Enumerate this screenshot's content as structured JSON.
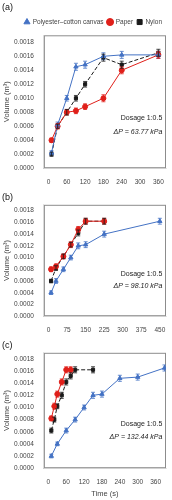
{
  "chart_data": [
    {
      "type": "line",
      "title": "(a)",
      "annotations": [
        "Dosage 1:0.5",
        "ΔP = 63.77 kPa"
      ],
      "ylabel": "Volume (m³)",
      "xlim": [
        -15,
        385
      ],
      "xticks": [
        0,
        60,
        120,
        180,
        240,
        300,
        360
      ],
      "ylim": [
        0,
        0.0019
      ],
      "yticks": [
        {
          "value": 0,
          "label": "0.0000"
        },
        {
          "value": 0.0002,
          "label": "0.0002"
        },
        {
          "value": 0.0004,
          "label": "0.0004"
        },
        {
          "value": 0.0006,
          "label": "0.0006"
        },
        {
          "value": 0.0008,
          "label": "0.0008"
        },
        {
          "value": 0.001,
          "label": "0.0010"
        },
        {
          "value": 0.0012,
          "label": "0.0012"
        },
        {
          "value": 0.0014,
          "label": "0.0014"
        },
        {
          "value": 0.0016,
          "label": "0.0016"
        },
        {
          "value": 0.0018,
          "label": "0.0018"
        }
      ],
      "grid": false,
      "legend": "upper right",
      "series": [
        {
          "name": "Polyester–cotton canvas",
          "color": "#4472C4",
          "marker": "triangle",
          "line_style": "solid",
          "x": [
            10,
            30,
            60,
            90,
            120,
            180,
            240,
            360
          ],
          "values": [
            0.00022,
            0.00062,
            0.001,
            0.00145,
            0.00148,
            0.0016,
            0.00162,
            0.00162
          ],
          "yerr": [
            3e-05,
            4e-05,
            4e-05,
            5e-05,
            5e-05,
            5e-05,
            5e-05,
            5e-05
          ]
        },
        {
          "name": "Paper",
          "color": "#E0201A",
          "marker": "circle",
          "line_style": "solid",
          "x": [
            10,
            30,
            60,
            90,
            120,
            180,
            240,
            360
          ],
          "values": [
            0.0004,
            0.0006,
            0.0008,
            0.00082,
            0.00088,
            0.001,
            0.0014,
            0.00162
          ],
          "yerr": [
            3e-05,
            4e-05,
            4e-05,
            4e-05,
            4e-05,
            5e-05,
            5e-05,
            5e-05
          ]
        },
        {
          "name": "Nylon",
          "color": "#1A1A1A",
          "marker": "square",
          "line_style": "dashed",
          "x": [
            10,
            30,
            60,
            90,
            120,
            180,
            240,
            360
          ],
          "values": [
            0.0002,
            0.0006,
            0.0008,
            0.001,
            0.0012,
            0.00158,
            0.00148,
            0.00165
          ],
          "yerr": [
            3e-05,
            3e-05,
            4e-05,
            4e-05,
            4e-05,
            5e-05,
            5e-05,
            5e-05
          ]
        }
      ]
    },
    {
      "type": "line",
      "title": "(b)",
      "annotations": [
        "Dosage 1:0.5",
        "ΔP = 98.10 kPa"
      ],
      "ylabel": "Volume (m³)",
      "xlim": [
        -19,
        475
      ],
      "xticks": [
        0,
        75,
        150,
        225,
        300,
        375,
        450
      ],
      "ylim": [
        0,
        0.0019
      ],
      "yticks": [
        {
          "value": 0,
          "label": "0.0000"
        },
        {
          "value": 0.0002,
          "label": "0.0002"
        },
        {
          "value": 0.0004,
          "label": "0.0004"
        },
        {
          "value": 0.0006,
          "label": "0.0006"
        },
        {
          "value": 0.0008,
          "label": "0.0008"
        },
        {
          "value": 0.001,
          "label": "0.0010"
        },
        {
          "value": 0.0012,
          "label": "0.0012"
        },
        {
          "value": 0.0014,
          "label": "0.0014"
        },
        {
          "value": 0.0016,
          "label": "0.0016"
        },
        {
          "value": 0.0018,
          "label": "0.0018"
        }
      ],
      "grid": false,
      "series": [
        {
          "name": "Polyester–cotton canvas",
          "color": "#4472C4",
          "marker": "triangle",
          "line_style": "solid",
          "x": [
            10,
            30,
            60,
            90,
            120,
            150,
            225,
            450
          ],
          "values": [
            0.0004,
            0.0006,
            0.0008,
            0.001,
            0.0012,
            0.00122,
            0.0014,
            0.00162
          ],
          "yerr": [
            3e-05,
            4e-05,
            4e-05,
            4e-05,
            5e-05,
            5e-05,
            5e-05,
            5e-05
          ]
        },
        {
          "name": "Paper",
          "color": "#E0201A",
          "marker": "circle",
          "line_style": "solid",
          "x": [
            10,
            30,
            60,
            90,
            120,
            150,
            225
          ],
          "values": [
            0.0008,
            0.00085,
            0.00102,
            0.00122,
            0.00148,
            0.00162,
            0.00162
          ],
          "yerr": [
            4e-05,
            4e-05,
            4e-05,
            5e-05,
            5e-05,
            5e-05,
            5e-05
          ]
        },
        {
          "name": "Nylon",
          "color": "#1A1A1A",
          "marker": "square",
          "line_style": "dashed",
          "x": [
            10,
            30,
            60,
            90,
            120,
            150,
            225
          ],
          "values": [
            0.0006,
            0.00082,
            0.00102,
            0.00122,
            0.00142,
            0.00162,
            0.00162
          ],
          "yerr": [
            3e-05,
            4e-05,
            4e-05,
            4e-05,
            5e-05,
            5e-05,
            5e-05
          ]
        }
      ]
    },
    {
      "type": "line",
      "title": "(c)",
      "annotations": [
        "Dosage 1:0.5",
        "ΔP = 132.44 kPa"
      ],
      "xlabel": "Time (s)",
      "ylabel": "Volume (m³)",
      "xlim": [
        -15,
        395
      ],
      "xticks": [
        0,
        60,
        120,
        180,
        240,
        300,
        360
      ],
      "ylim": [
        0,
        0.0019
      ],
      "yticks": [
        {
          "value": 0,
          "label": "0.0000"
        },
        {
          "value": 0.0002,
          "label": "0.0002"
        },
        {
          "value": 0.0004,
          "label": "0.0004"
        },
        {
          "value": 0.0006,
          "label": "0.0006"
        },
        {
          "value": 0.0008,
          "label": "0.0008"
        },
        {
          "value": 0.001,
          "label": "0.0010"
        },
        {
          "value": 0.0012,
          "label": "0.0012"
        },
        {
          "value": 0.0014,
          "label": "0.0014"
        },
        {
          "value": 0.0016,
          "label": "0.0016"
        },
        {
          "value": 0.0018,
          "label": "0.0018"
        }
      ],
      "grid": false,
      "series": [
        {
          "name": "Polyester–cotton canvas",
          "color": "#4472C4",
          "marker": "triangle",
          "line_style": "solid",
          "x": [
            10,
            30,
            60,
            90,
            120,
            150,
            180,
            240,
            300,
            390
          ],
          "values": [
            0.0002,
            0.0004,
            0.00062,
            0.0008,
            0.001,
            0.0012,
            0.00122,
            0.00148,
            0.0015,
            0.00165
          ],
          "yerr": [
            3e-05,
            3e-05,
            4e-05,
            4e-05,
            4e-05,
            5e-05,
            5e-05,
            5e-05,
            5e-05,
            5e-05
          ]
        },
        {
          "name": "Paper",
          "color": "#E0201A",
          "marker": "circle",
          "line_style": "solid",
          "x": [
            10,
            20,
            30,
            45,
            60,
            75
          ],
          "values": [
            0.00082,
            0.00102,
            0.00122,
            0.00142,
            0.00162,
            0.00162
          ],
          "yerr": [
            4e-05,
            5e-05,
            5e-05,
            5e-05,
            5e-05,
            5e-05
          ]
        },
        {
          "name": "Nylon",
          "color": "#1A1A1A",
          "marker": "square",
          "line_style": "dashed",
          "x": [
            10,
            20,
            30,
            45,
            60,
            75,
            90,
            150
          ],
          "values": [
            0.00062,
            0.0008,
            0.00102,
            0.0012,
            0.00142,
            0.00152,
            0.00162,
            0.00162
          ],
          "yerr": [
            4e-05,
            4e-05,
            4e-05,
            5e-05,
            5e-05,
            5e-05,
            5e-05,
            5e-05
          ]
        }
      ]
    }
  ]
}
